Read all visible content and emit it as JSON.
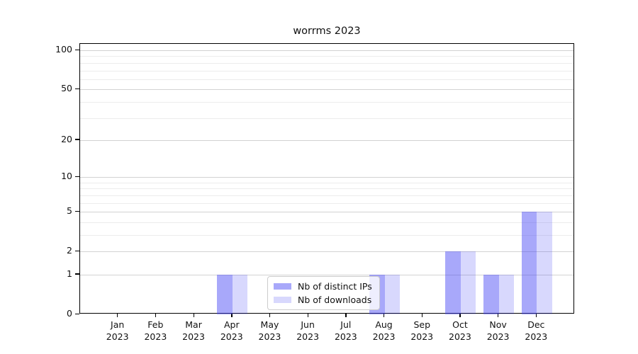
{
  "chart_data": {
    "type": "bar",
    "title": "worrms 2023",
    "categories": [
      "Jan",
      "Feb",
      "Mar",
      "Apr",
      "May",
      "Jun",
      "Jul",
      "Aug",
      "Sep",
      "Oct",
      "Nov",
      "Dec"
    ],
    "x_tick_year": "2023",
    "series": [
      {
        "name": "Nb of distinct IPs",
        "color": "rgba(70,70,245,0.47)",
        "values": [
          0,
          0,
          0,
          1,
          0,
          0,
          0,
          1,
          0,
          2,
          1,
          5
        ]
      },
      {
        "name": "Nb of downloads",
        "color": "rgba(70,70,245,0.21)",
        "values": [
          0,
          0,
          0,
          1,
          0,
          0,
          0,
          1,
          0,
          2,
          1,
          5
        ]
      }
    ],
    "xlabel": "",
    "ylabel": "",
    "y_scale": "log1p",
    "ylim": [
      0,
      112
    ],
    "y_major_ticks": [
      0,
      1,
      2,
      5,
      10,
      20,
      50,
      100
    ],
    "y_minor_ticks": [
      3,
      4,
      6,
      7,
      8,
      9,
      30,
      40,
      60,
      70,
      80,
      90
    ],
    "grid": "horizontal",
    "legend_position": "lower center"
  }
}
